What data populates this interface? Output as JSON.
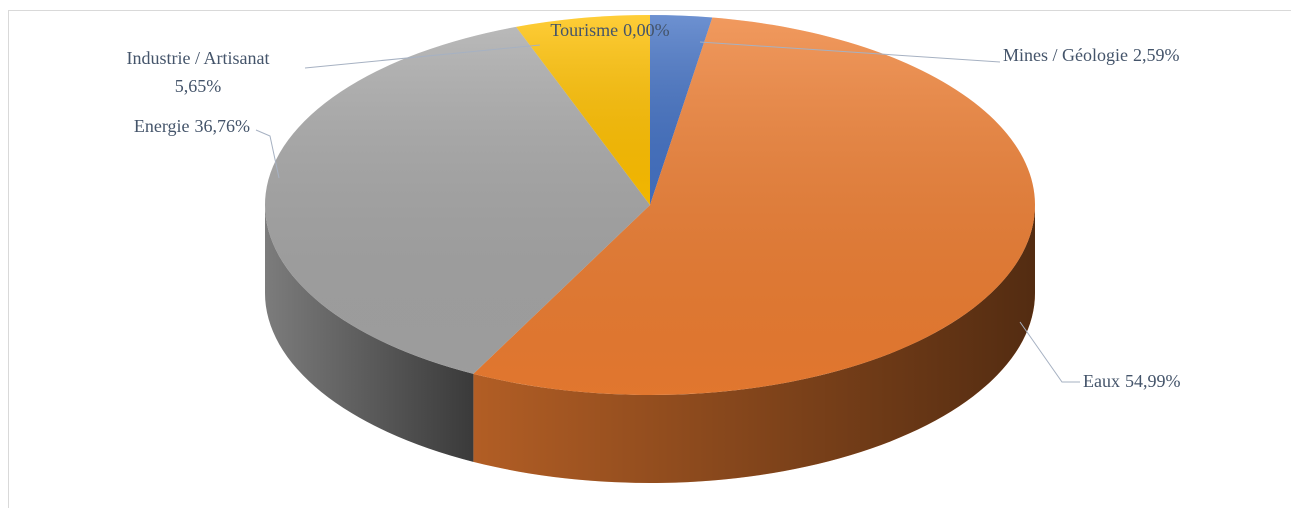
{
  "chart_data": {
    "type": "pie",
    "categories": [
      "Mines / Géologie",
      "Eaux",
      "Energie",
      "Industrie / Artisanat",
      "Tourisme"
    ],
    "values": [
      2.59,
      54.99,
      36.76,
      5.65,
      0.0
    ],
    "value_labels": [
      "2,59%",
      "54,99%",
      "36,76%",
      "5,65%",
      "0,00%"
    ],
    "colors": [
      "#4472c4",
      "#ed7d31",
      "#a5a5a5",
      "#ffc000",
      "#5b9bd5"
    ]
  }
}
